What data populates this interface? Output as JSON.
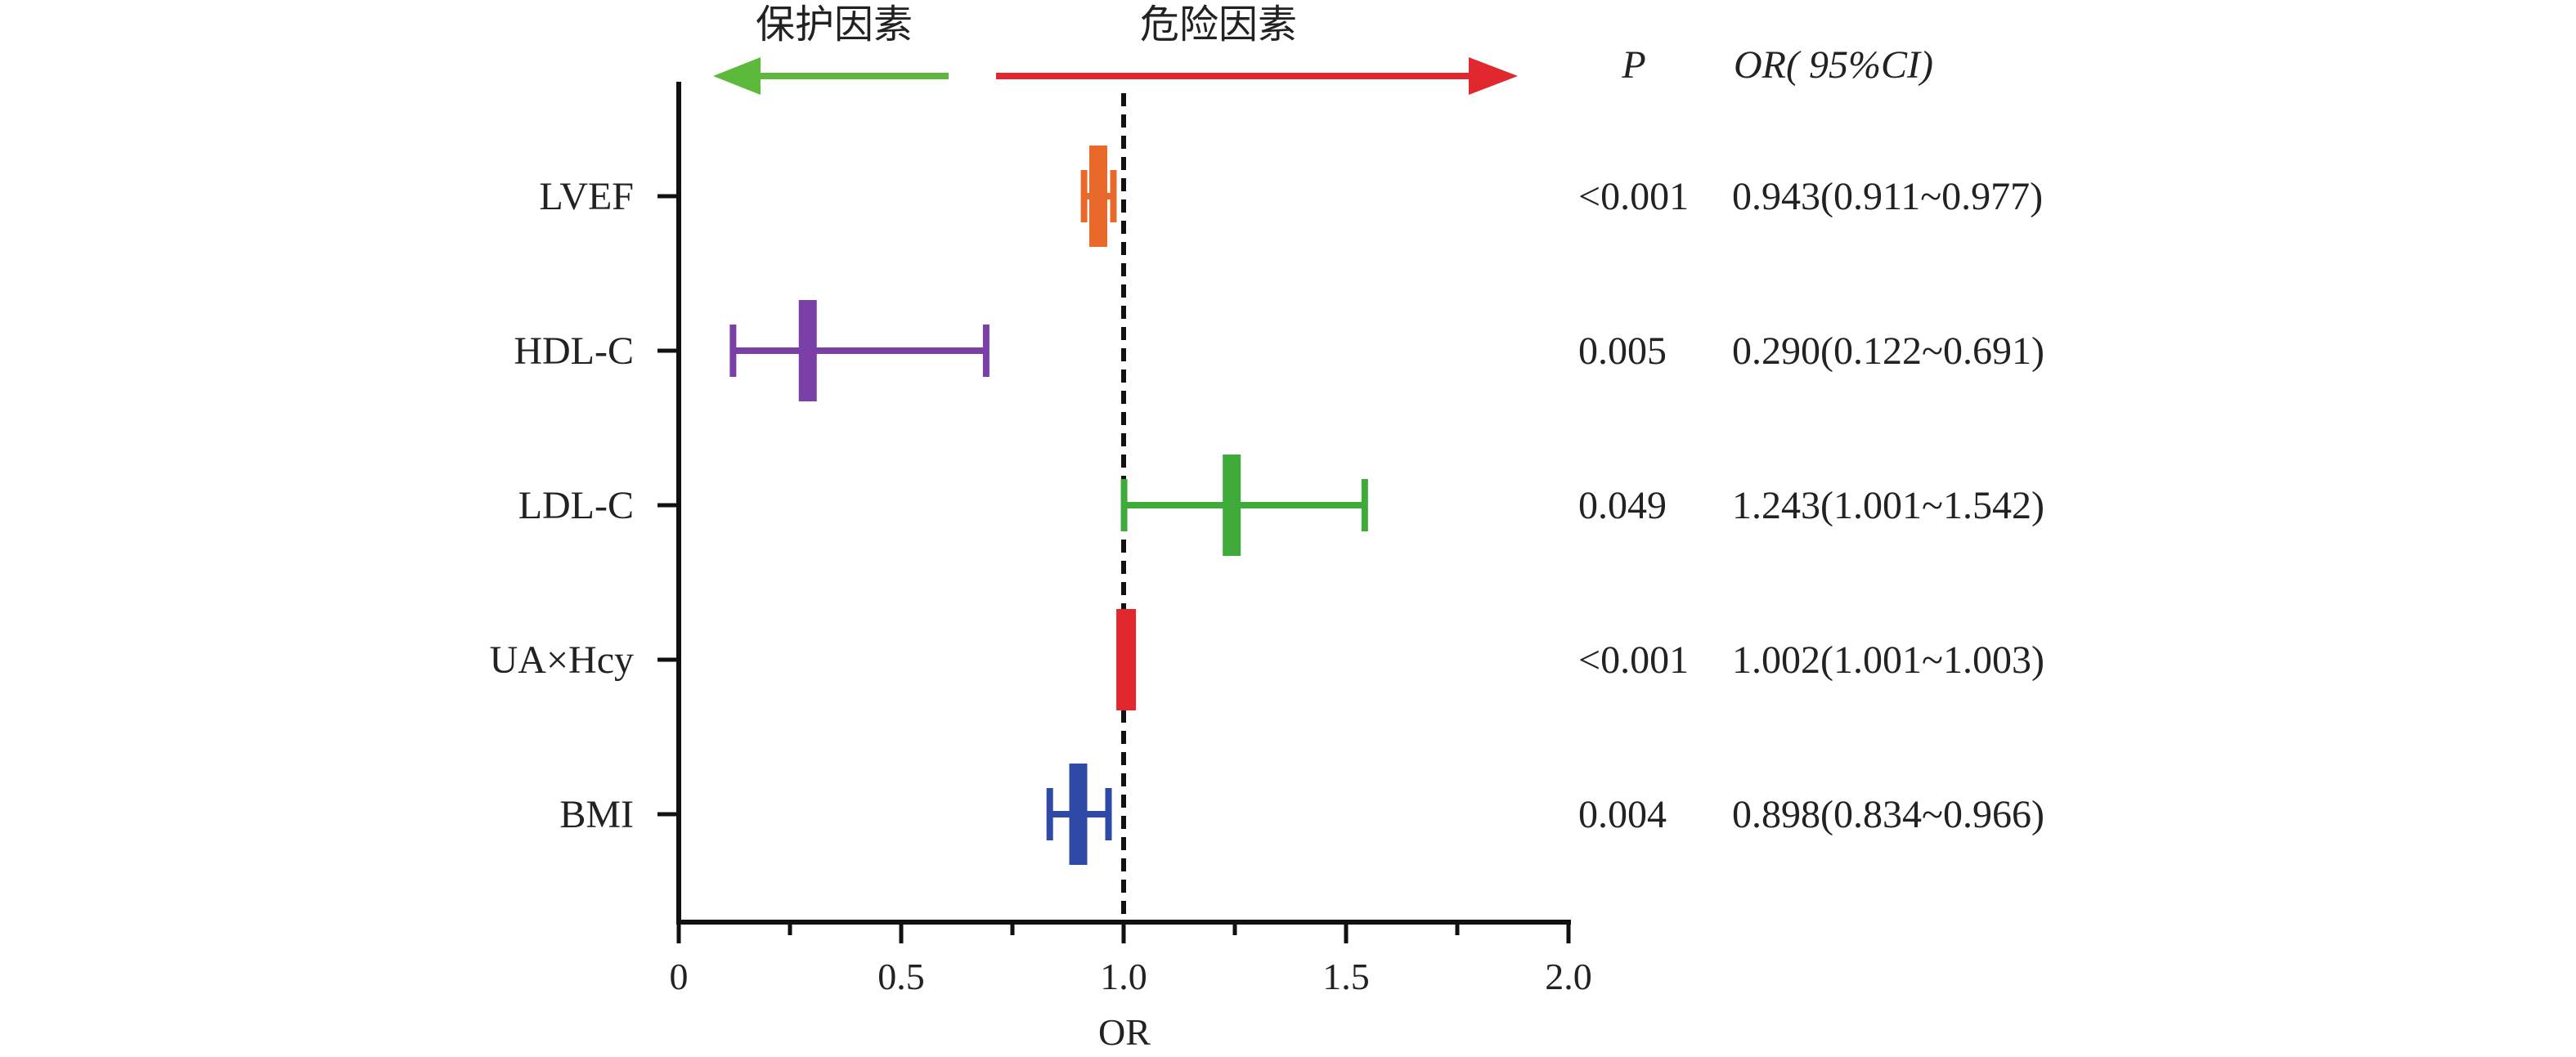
{
  "chart_data": {
    "type": "forest",
    "xlabel": "OR",
    "xlim": [
      0,
      2.0
    ],
    "x_ticks": [
      "0",
      "0.5",
      "1.0",
      "1.5",
      "2.0"
    ],
    "reference_line": 1.0,
    "direction_labels": {
      "left": "保护因素",
      "right": "危险因素"
    },
    "columns": {
      "p_header": "P",
      "or_header": "OR( 95%CI)"
    },
    "rows": [
      {
        "label": "LVEF",
        "or": 0.943,
        "lower": 0.911,
        "upper": 0.977,
        "p_text": "<0.001",
        "or_text": "0.943(0.911~0.977)",
        "color": "#E8692A"
      },
      {
        "label": "HDL-C",
        "or": 0.29,
        "lower": 0.122,
        "upper": 0.691,
        "p_text": "0.005",
        "or_text": "0.290(0.122~0.691)",
        "color": "#7B3FA8"
      },
      {
        "label": "LDL-C",
        "or": 1.243,
        "lower": 1.001,
        "upper": 1.542,
        "p_text": "0.049",
        "or_text": "1.243(1.001~1.542)",
        "color": "#3DAA3A"
      },
      {
        "label": "UA×Hcy",
        "or": 1.002,
        "lower": 1.001,
        "upper": 1.003,
        "p_text": "<0.001",
        "or_text": "1.002(1.001~1.003)",
        "color": "#E0282E"
      },
      {
        "label": "BMI",
        "or": 0.898,
        "lower": 0.834,
        "upper": 0.966,
        "p_text": "0.004",
        "or_text": "0.898(0.834~0.966)",
        "color": "#2F4AA6"
      }
    ],
    "arrow_colors": {
      "left": "#5DB93C",
      "right": "#E0282E"
    }
  }
}
